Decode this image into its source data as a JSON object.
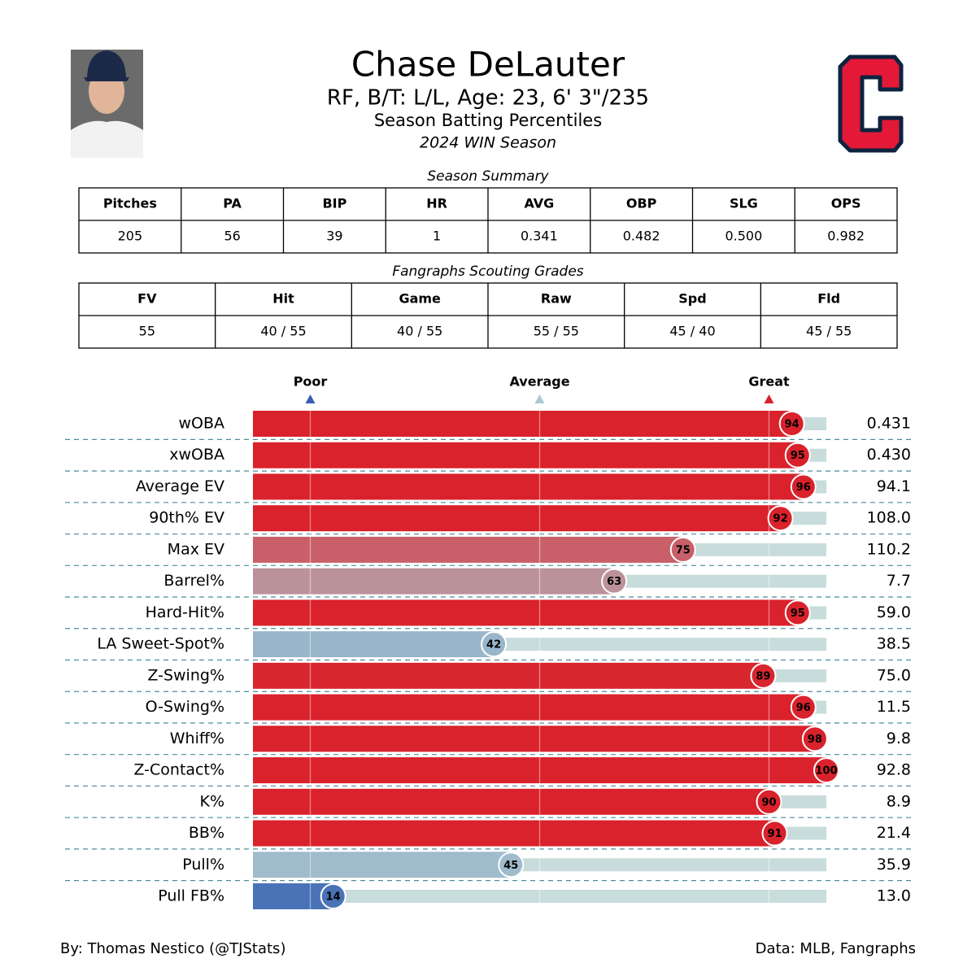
{
  "header": {
    "name": "Chase DeLauter",
    "info": "RF, B/T: L/L, Age: 23, 6' 3\"/235",
    "subtitle": "Season Batting Percentiles",
    "season": "2024 WIN Season"
  },
  "summary": {
    "title": "Season Summary",
    "columns": [
      "Pitches",
      "PA",
      "BIP",
      "HR",
      "AVG",
      "OBP",
      "SLG",
      "OPS"
    ],
    "values": [
      "205",
      "56",
      "39",
      "1",
      "0.341",
      "0.482",
      "0.500",
      "0.982"
    ]
  },
  "grades": {
    "title": "Fangraphs Scouting Grades",
    "columns": [
      "FV",
      "Hit",
      "Game",
      "Raw",
      "Spd",
      "Fld"
    ],
    "values": [
      "55",
      "40 / 55",
      "40 / 55",
      "55 / 55",
      "45 / 40",
      "45 / 55"
    ]
  },
  "chart_data": {
    "type": "percentile-bar",
    "categories": [
      "wOBA",
      "xwOBA",
      "Average EV",
      "90th% EV",
      "Max EV",
      "Barrel%",
      "Hard-Hit%",
      "LA Sweet-Spot%",
      "Z-Swing%",
      "O-Swing%",
      "Whiff%",
      "Z-Contact%",
      "K%",
      "BB%",
      "Pull%",
      "Pull FB%"
    ],
    "values": [
      94,
      95,
      96,
      92,
      75,
      63,
      95,
      42,
      89,
      96,
      98,
      100,
      90,
      91,
      45,
      14
    ],
    "stat_values": [
      "0.431",
      "0.430",
      "94.1",
      "108.0",
      "110.2",
      "7.7",
      "59.0",
      "38.5",
      "75.0",
      "11.5",
      "9.8",
      "92.8",
      "8.9",
      "21.4",
      "35.9",
      "13.0"
    ],
    "xlim": [
      0,
      100
    ],
    "xticks": [
      {
        "value": 10,
        "label": "Poor"
      },
      {
        "value": 50,
        "label": "Average"
      },
      {
        "value": 90,
        "label": "Great"
      }
    ],
    "tick_colors": [
      "#3a5fb0",
      "#aac8d0",
      "#d9222b"
    ],
    "colorscale": [
      [
        10,
        "#3f68b3"
      ],
      [
        50,
        "#aec8cf"
      ],
      [
        90,
        "#d9222b"
      ]
    ],
    "track_color": "#c8dcdc",
    "grid": true
  },
  "footer": {
    "left": "By: Thomas Nestico (@TJStats)",
    "right": "Data: MLB, Fangraphs"
  }
}
